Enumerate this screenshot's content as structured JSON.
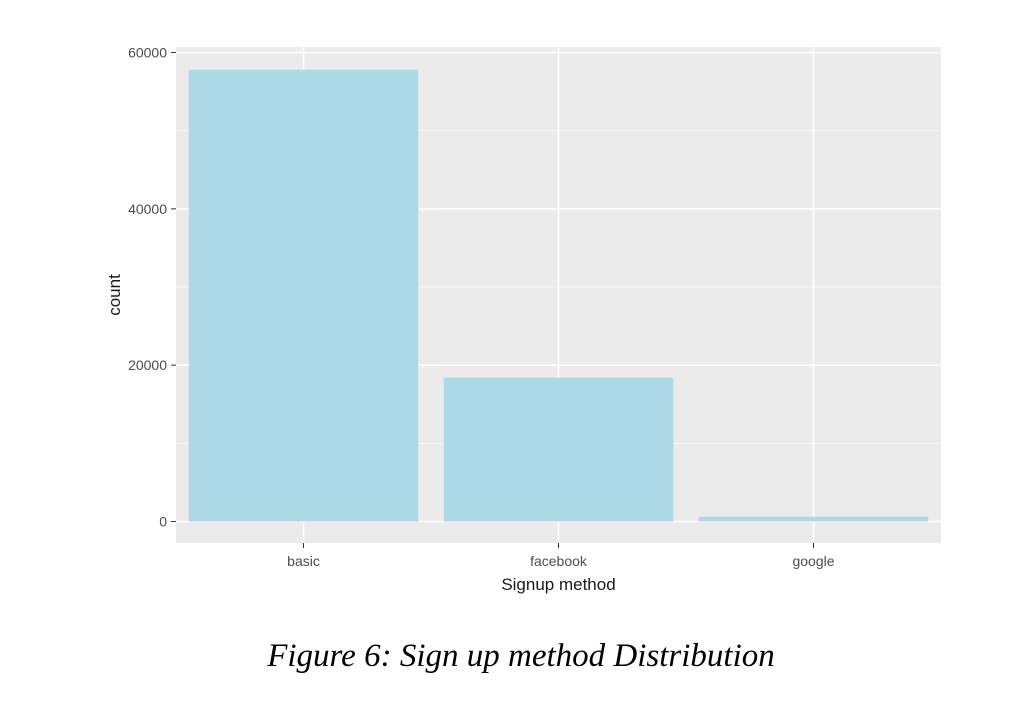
{
  "chart_data": {
    "type": "bar",
    "categories": [
      "basic",
      "facebook",
      "google"
    ],
    "values": [
      57800,
      18400,
      600
    ],
    "xlabel": "Signup method",
    "ylabel": "count",
    "ylim": [
      0,
      60000
    ],
    "y_ticks": [
      "0",
      "20000",
      "40000",
      "60000"
    ],
    "grid": true,
    "legend": "none",
    "colors": {
      "bar": "#add8e6",
      "panel": "#ebebeb",
      "grid_major": "#ffffff",
      "grid_minor": "#f7f7f7",
      "tick": "#333333"
    }
  },
  "caption": "Figure 6: Sign up method Distribution"
}
